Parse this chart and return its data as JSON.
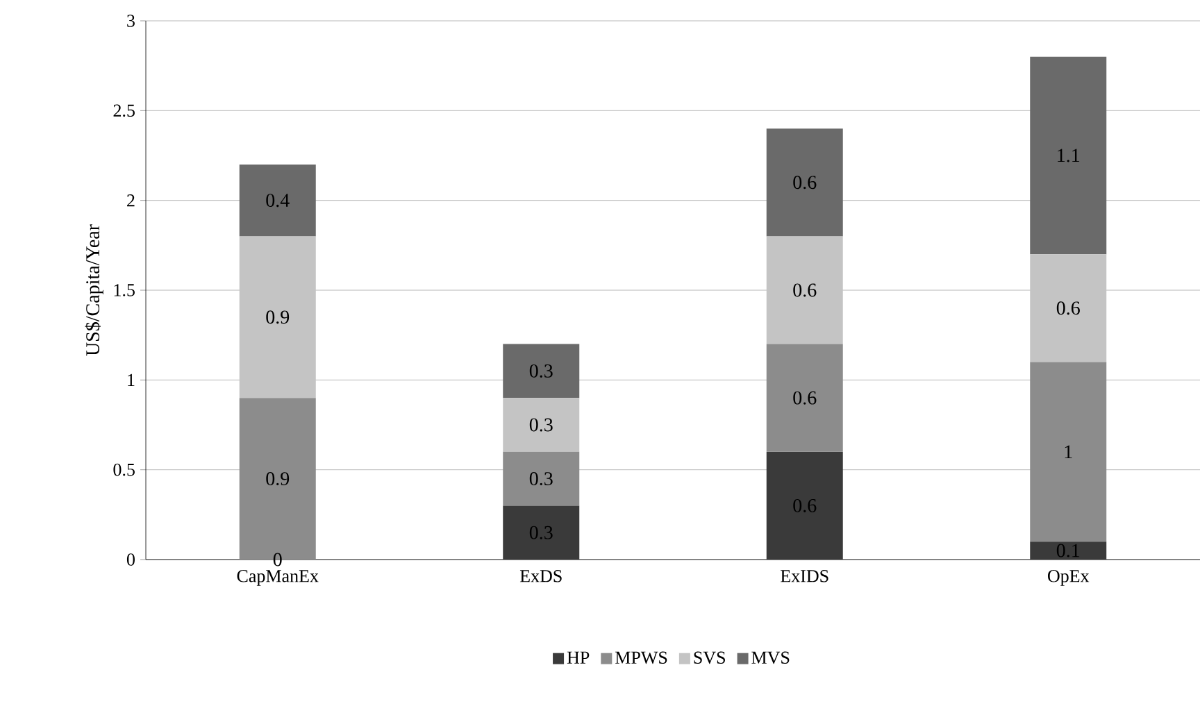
{
  "chart_data": {
    "type": "bar",
    "stacked": true,
    "ylabel": "US$/Capita/Year",
    "categories": [
      "CapManEx",
      "ExDS",
      "ExIDS",
      "OpEx"
    ],
    "series": [
      {
        "name": "HP",
        "color": "#3a3a3a",
        "values": [
          0,
          0.3,
          0.6,
          0.1
        ],
        "value_labels": [
          null,
          "0.3",
          "0.6",
          "0.1"
        ]
      },
      {
        "name": "MPWS",
        "color": "#8c8c8c",
        "values": [
          0.9,
          0.3,
          0.6,
          1
        ],
        "value_labels": [
          "0.9",
          "0.3",
          "0.6",
          "1"
        ]
      },
      {
        "name": "SVS",
        "color": "#c4c4c4",
        "values": [
          0.9,
          0.3,
          0.6,
          0.6
        ],
        "value_labels": [
          "0.9",
          "0.3",
          "0.6",
          "0.6"
        ]
      },
      {
        "name": "MVS",
        "color": "#6a6a6a",
        "values": [
          0.4,
          0.3,
          0.6,
          1.1
        ],
        "value_labels": [
          "0.4",
          "0.3",
          "0.6",
          "1.1"
        ]
      }
    ],
    "annotations": [
      {
        "text": "0",
        "x": "CapManEx",
        "y": 0
      }
    ],
    "ylim": [
      0,
      3
    ],
    "yticks": [
      0,
      0.5,
      1,
      1.5,
      2,
      2.5,
      3
    ],
    "grid": "y",
    "legend": "bottom"
  }
}
